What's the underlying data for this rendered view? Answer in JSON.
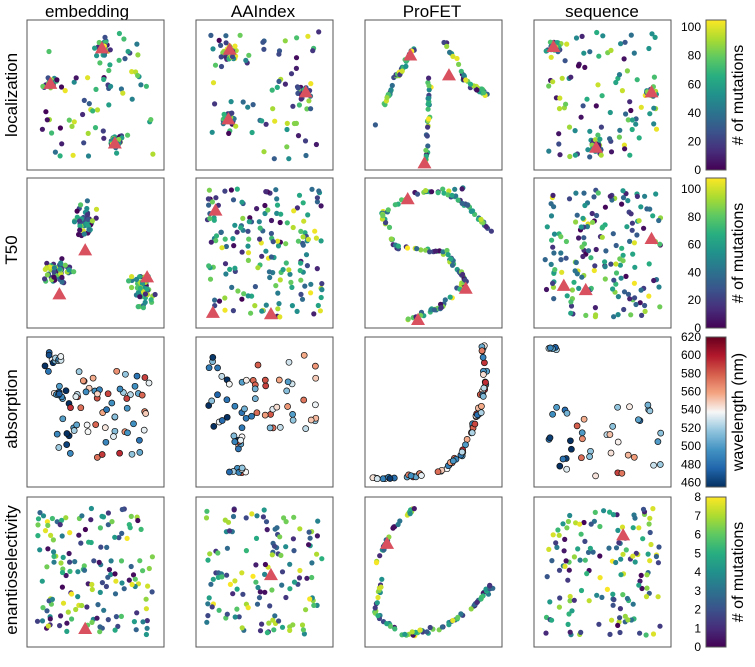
{
  "figure": {
    "columns": [
      "embedding",
      "AAIndex",
      "ProFET",
      "sequence"
    ],
    "rows": [
      "localization",
      "T50",
      "absorption",
      "enantioselectivity"
    ]
  },
  "colorbars": [
    {
      "row": "localization",
      "label": "# of mutations",
      "colormap": "viridis",
      "range": [
        0,
        105
      ],
      "ticks": [
        "0",
        "20",
        "40",
        "60",
        "80",
        "100"
      ]
    },
    {
      "row": "T50",
      "label": "# of mutations",
      "colormap": "viridis",
      "range": [
        0,
        108
      ],
      "ticks": [
        "0",
        "20",
        "40",
        "60",
        "80",
        "100"
      ]
    },
    {
      "row": "absorption",
      "label": "wavelength (nm)",
      "colormap": "RdBu_r",
      "range": [
        455,
        620
      ],
      "ticks": [
        "460",
        "480",
        "500",
        "520",
        "540",
        "560",
        "580",
        "600",
        "620"
      ]
    },
    {
      "row": "enantioselectivity",
      "label": "# of mutations",
      "colormap": "viridis",
      "range": [
        0,
        8
      ],
      "ticks": [
        "0",
        "1",
        "2",
        "3",
        "4",
        "5",
        "6",
        "7",
        "8"
      ]
    }
  ],
  "colors": {
    "parent_marker": "#d9515f",
    "frame": "#555555",
    "point_edge": "#111111"
  },
  "chart_data": [
    {
      "type": "scatter",
      "row": "localization",
      "column": "embedding",
      "x": [],
      "y": [],
      "parents": [
        {
          "x": 0.15,
          "y": 0.58
        },
        {
          "x": 0.55,
          "y": 0.83
        },
        {
          "x": 0.65,
          "y": 0.16
        }
      ]
    },
    {
      "type": "scatter",
      "row": "localization",
      "column": "AAIndex",
      "x": [],
      "y": [],
      "parents": [
        {
          "x": 0.23,
          "y": 0.82
        },
        {
          "x": 0.82,
          "y": 0.52
        },
        {
          "x": 0.22,
          "y": 0.33
        }
      ]
    },
    {
      "type": "scatter",
      "row": "localization",
      "column": "ProFET",
      "x": [],
      "y": [],
      "parents": [
        {
          "x": 0.32,
          "y": 0.78
        },
        {
          "x": 0.62,
          "y": 0.64
        },
        {
          "x": 0.43,
          "y": 0.02
        }
      ]
    },
    {
      "type": "scatter",
      "row": "localization",
      "column": "sequence",
      "x": [],
      "y": [],
      "parents": [
        {
          "x": 0.12,
          "y": 0.84
        },
        {
          "x": 0.88,
          "y": 0.52
        },
        {
          "x": 0.45,
          "y": 0.13
        }
      ]
    },
    {
      "type": "scatter",
      "row": "T50",
      "column": "embedding",
      "x": [],
      "y": [],
      "parents": [
        {
          "x": 0.42,
          "y": 0.52
        },
        {
          "x": 0.9,
          "y": 0.33
        },
        {
          "x": 0.22,
          "y": 0.21
        }
      ]
    },
    {
      "type": "scatter",
      "row": "T50",
      "column": "AAIndex",
      "x": [],
      "y": [],
      "parents": [
        {
          "x": 0.12,
          "y": 0.8
        },
        {
          "x": 0.1,
          "y": 0.08
        },
        {
          "x": 0.55,
          "y": 0.07
        }
      ]
    },
    {
      "type": "scatter",
      "row": "T50",
      "column": "ProFET",
      "x": [],
      "y": [],
      "parents": [
        {
          "x": 0.3,
          "y": 0.88
        },
        {
          "x": 0.38,
          "y": 0.03
        },
        {
          "x": 0.75,
          "y": 0.25
        }
      ]
    },
    {
      "type": "scatter",
      "row": "T50",
      "column": "sequence",
      "x": [],
      "y": [],
      "parents": [
        {
          "x": 0.88,
          "y": 0.6
        },
        {
          "x": 0.2,
          "y": 0.27
        },
        {
          "x": 0.37,
          "y": 0.24
        }
      ]
    },
    {
      "type": "scatter",
      "row": "absorption",
      "column": "embedding",
      "x": [],
      "y": [],
      "parents": []
    },
    {
      "type": "scatter",
      "row": "absorption",
      "column": "AAIndex",
      "x": [],
      "y": [],
      "parents": []
    },
    {
      "type": "scatter",
      "row": "absorption",
      "column": "ProFET",
      "x": [],
      "y": [],
      "parents": []
    },
    {
      "type": "scatter",
      "row": "absorption",
      "column": "sequence",
      "x": [],
      "y": [],
      "parents": []
    },
    {
      "type": "scatter",
      "row": "enantioselectivity",
      "column": "embedding",
      "x": [],
      "y": [],
      "parents": [
        {
          "x": 0.42,
          "y": 0.1
        }
      ]
    },
    {
      "type": "scatter",
      "row": "enantioselectivity",
      "column": "AAIndex",
      "x": [],
      "y": [],
      "parents": [
        {
          "x": 0.55,
          "y": 0.48
        }
      ]
    },
    {
      "type": "scatter",
      "row": "enantioselectivity",
      "column": "ProFET",
      "x": [],
      "y": [],
      "parents": [
        {
          "x": 0.14,
          "y": 0.7
        }
      ]
    },
    {
      "type": "scatter",
      "row": "enantioselectivity",
      "column": "sequence",
      "x": [],
      "y": [],
      "parents": [
        {
          "x": 0.66,
          "y": 0.76
        }
      ]
    }
  ]
}
